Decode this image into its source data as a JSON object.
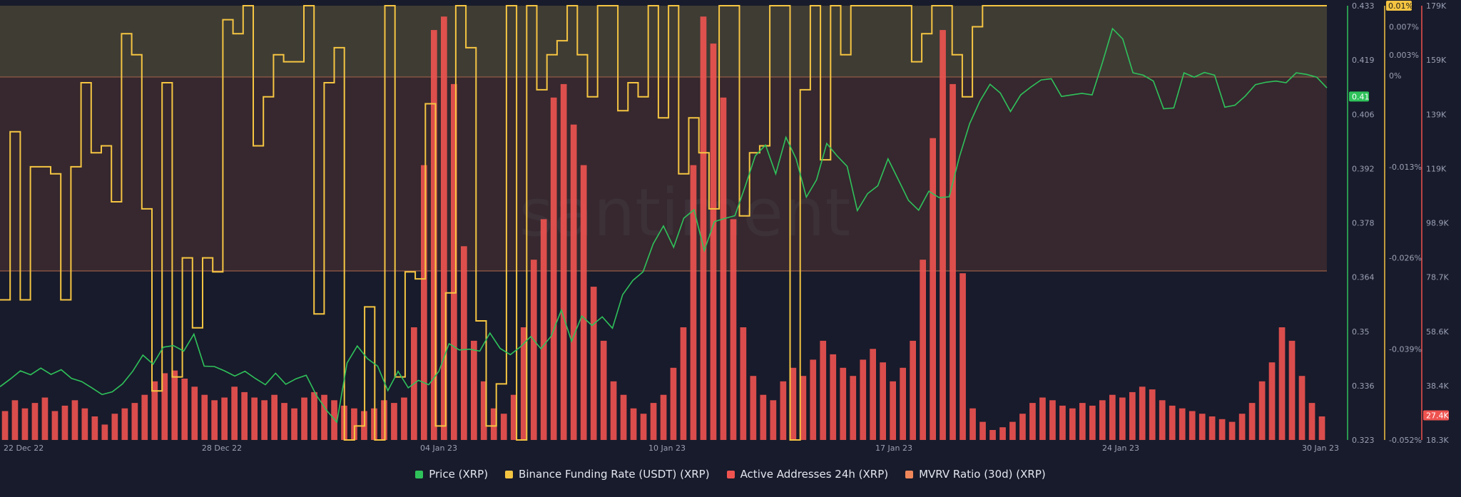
{
  "colors": {
    "background": "#181b2b",
    "price": "#2fc25b",
    "funding": "#f5c542",
    "active_addresses": "#ef5350",
    "mvrv": "#f0875a",
    "axis_text": "#9aa0b4"
  },
  "watermark": "santiment",
  "legend": [
    {
      "label": "Price (XRP)",
      "color": "#2fc25b"
    },
    {
      "label": "Binance Funding Rate (USDT) (XRP)",
      "color": "#f5c542"
    },
    {
      "label": "Active Addresses 24h (XRP)",
      "color": "#ef5350"
    },
    {
      "label": "MVRV Ratio (30d) (XRP)",
      "color": "#f0875a"
    }
  ],
  "chart_data": {
    "type": "line",
    "x_ticks": [
      "22 Dec 22",
      "28 Dec 22",
      "04 Jan 23",
      "10 Jan 23",
      "17 Jan 23",
      "24 Jan 23",
      "30 Jan 23"
    ],
    "axes": {
      "price": {
        "ticks": [
          "0.433",
          "0.419",
          "0.406",
          "0.392",
          "0.378",
          "0.364",
          "0.35",
          "0.336",
          "0.323"
        ],
        "range": [
          0.323,
          0.433
        ],
        "current": "0.41"
      },
      "funding": {
        "ticks": [
          "0.01%",
          "0.007%",
          "0.003%",
          "0%",
          "-0.013%",
          "-0.026%",
          "-0.039%",
          "-0.052%"
        ],
        "range": [
          -0.052,
          0.01
        ]
      },
      "active_addresses": {
        "ticks": [
          "179K",
          "159K",
          "139K",
          "119K",
          "98.9K",
          "78.7K",
          "58.6K",
          "38.4K",
          "18.3K"
        ],
        "range": [
          18.3,
          179
        ],
        "current": "27.4K"
      }
    },
    "series": [
      {
        "name": "Price (XRP)",
        "axis": "price",
        "values": [
          0.3365,
          0.3384,
          0.3405,
          0.3395,
          0.3412,
          0.3396,
          0.3408,
          0.3386,
          0.3378,
          0.3362,
          0.3345,
          0.3352,
          0.3372,
          0.3404,
          0.3445,
          0.3422,
          0.3465,
          0.3469,
          0.3455,
          0.3498,
          0.3417,
          0.3416,
          0.3405,
          0.3392,
          0.3404,
          0.3386,
          0.337,
          0.3399,
          0.3371,
          0.3385,
          0.3394,
          0.3343,
          0.3305,
          0.3275,
          0.3425,
          0.3468,
          0.3436,
          0.3417,
          0.3355,
          0.3404,
          0.3362,
          0.3381,
          0.337,
          0.3404,
          0.3474,
          0.3458,
          0.346,
          0.3455,
          0.3501,
          0.3462,
          0.3446,
          0.3466,
          0.3492,
          0.3461,
          0.3493,
          0.3559,
          0.348,
          0.3544,
          0.352,
          0.3542,
          0.3513,
          0.3598,
          0.3634,
          0.3656,
          0.3727,
          0.3772,
          0.3718,
          0.3792,
          0.3813,
          0.371,
          0.3783,
          0.3791,
          0.3798,
          0.3872,
          0.395,
          0.3977,
          0.3904,
          0.3997,
          0.3942,
          0.3845,
          0.3889,
          0.3981,
          0.395,
          0.3923,
          0.3811,
          0.3854,
          0.3874,
          0.3942,
          0.389,
          0.3837,
          0.3812,
          0.386,
          0.3844,
          0.3846,
          0.3947,
          0.4031,
          0.4088,
          0.4131,
          0.4109,
          0.4062,
          0.4104,
          0.4124,
          0.4142,
          0.4145,
          0.41,
          0.4104,
          0.4108,
          0.4104,
          0.4185,
          0.4272,
          0.4246,
          0.416,
          0.4154,
          0.4139,
          0.4069,
          0.4071,
          0.416,
          0.4149,
          0.4161,
          0.4154,
          0.4073,
          0.4078,
          0.4101,
          0.413,
          0.4136,
          0.4139,
          0.4135,
          0.416,
          0.4156,
          0.4149,
          0.4122
        ],
        "color": "#2fc25b"
      },
      {
        "name": "Binance Funding Rate (USDT) (XRP)",
        "axis": "funding",
        "values": [
          -0.032,
          -0.008,
          -0.032,
          -0.013,
          -0.013,
          -0.014,
          -0.032,
          -0.013,
          -0.001,
          -0.011,
          -0.01,
          -0.018,
          0.006,
          0.003,
          -0.019,
          -0.045,
          -0.001,
          -0.043,
          -0.026,
          -0.036,
          -0.026,
          -0.028,
          0.008,
          0.006,
          0.01,
          -0.01,
          -0.003,
          0.003,
          0.002,
          0.002,
          0.01,
          -0.034,
          -0.001,
          0.004,
          -0.052,
          -0.05,
          -0.033,
          -0.052,
          0.01,
          -0.043,
          -0.028,
          -0.029,
          -0.004,
          -0.05,
          -0.031,
          0.01,
          0.004,
          -0.035,
          -0.05,
          -0.044,
          0.01,
          -0.052,
          0.01,
          -0.002,
          0.003,
          0.005,
          0.01,
          0.003,
          -0.003,
          0.01,
          0.01,
          -0.005,
          -0.001,
          -0.003,
          0.01,
          -0.006,
          0.01,
          -0.014,
          -0.006,
          -0.011,
          -0.019,
          0.01,
          0.01,
          -0.02,
          -0.011,
          -0.01,
          0.01,
          0.01,
          -0.052,
          -0.002,
          0.01,
          -0.012,
          0.01,
          0.003,
          0.01,
          0.01,
          0.01,
          0.01,
          0.01,
          0.01,
          0.002,
          0.006,
          0.01,
          0.01,
          0.003,
          -0.003,
          0.007,
          0.01,
          0.01,
          0.01,
          0.01,
          0.01,
          0.01,
          0.01,
          0.01,
          0.01,
          0.01,
          0.01,
          0.01,
          0.01,
          0.01,
          0.01,
          0.01,
          0.01,
          0.01,
          0.01,
          0.01,
          0.01,
          0.01,
          0.01,
          0.01,
          0.01,
          0.01,
          0.01,
          0.01,
          0.01,
          0.01,
          0.01,
          0.01,
          0.01,
          0.01
        ],
        "color": "#f5c542"
      },
      {
        "name": "Active Addresses 24h (XRP)",
        "axis": "active_addresses",
        "type": "bar",
        "values": [
          29,
          33,
          30,
          32,
          34,
          29,
          31,
          33,
          30,
          27,
          24,
          28,
          30,
          32,
          35,
          40,
          43,
          44,
          41,
          38,
          35,
          33,
          34,
          38,
          36,
          34,
          33,
          35,
          32,
          30,
          34,
          36,
          35,
          33,
          31,
          30,
          29,
          30,
          33,
          32,
          34,
          60,
          120,
          170,
          175,
          150,
          90,
          55,
          40,
          30,
          28,
          35,
          60,
          85,
          100,
          145,
          150,
          135,
          120,
          75,
          55,
          40,
          35,
          30,
          28,
          32,
          35,
          45,
          60,
          120,
          175,
          165,
          145,
          100,
          60,
          42,
          35,
          33,
          40,
          45,
          42,
          48,
          55,
          50,
          45,
          42,
          48,
          52,
          47,
          40,
          45,
          55,
          85,
          130,
          170,
          150,
          80,
          30,
          25,
          22,
          23,
          25,
          28,
          32,
          34,
          33,
          31,
          30,
          32,
          31,
          33,
          35,
          34,
          36,
          38,
          37,
          33,
          31,
          30,
          29,
          28,
          27,
          26,
          25,
          28,
          32,
          40,
          47,
          60,
          55,
          42,
          32,
          27
        ],
        "color": "#ef5350"
      },
      {
        "name": "MVRV Ratio (30d) (XRP)",
        "type": "area",
        "color": "#f0875a"
      }
    ]
  }
}
